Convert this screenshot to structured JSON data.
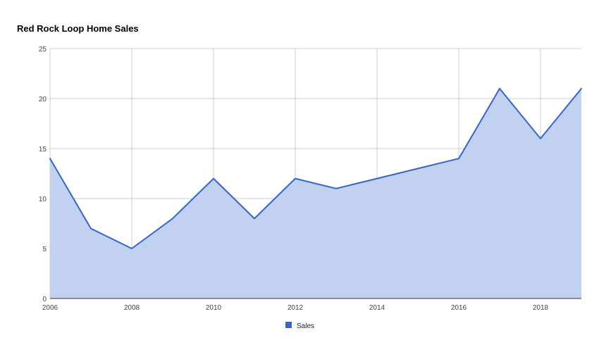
{
  "chart_data": {
    "type": "area",
    "title": "Red Rock Loop Home Sales",
    "xlabel": "",
    "ylabel": "",
    "x": [
      2006,
      2007,
      2008,
      2009,
      2010,
      2011,
      2012,
      2013,
      2014,
      2015,
      2016,
      2017,
      2018,
      2019
    ],
    "xlim": [
      2006,
      2019
    ],
    "ylim": [
      0,
      25
    ],
    "x_ticks": [
      "2006",
      "2008",
      "2010",
      "2012",
      "2014",
      "2016",
      "2018"
    ],
    "y_ticks": [
      "0",
      "5",
      "10",
      "15",
      "20",
      "25"
    ],
    "grid": true,
    "legend_position": "bottom",
    "series": [
      {
        "name": "Sales",
        "color": "#3366cc",
        "fill": "#c2d1f0",
        "values": [
          14,
          7,
          5,
          8,
          12,
          8,
          12,
          11,
          12,
          13,
          14,
          21,
          16,
          21
        ]
      }
    ]
  }
}
